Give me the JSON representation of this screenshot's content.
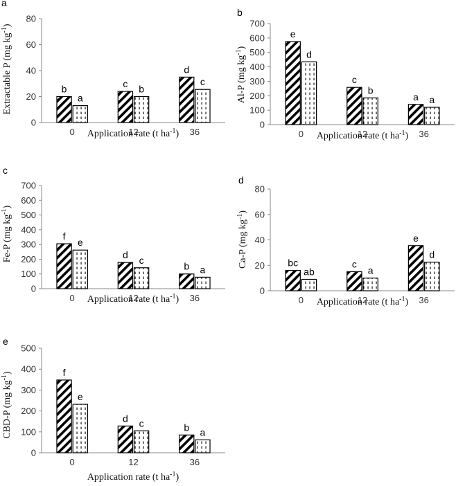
{
  "chart_data": [
    {
      "type": "bar",
      "panel": "a",
      "ylabel": "Extractable P (mg kg",
      "ylabel_sup": "-1",
      "ylabel_end": ")",
      "xlabel": "Application rate (t ha",
      "xlabel_sup": "-1",
      "xlabel_end": ")",
      "categories": [
        "0",
        "12",
        "36"
      ],
      "ylim": [
        0,
        80
      ],
      "yticks": [
        "0",
        "20",
        "40",
        "60",
        "80"
      ],
      "series": [
        {
          "pattern": "diagonal-hatch",
          "values": [
            20,
            24,
            35
          ],
          "letters": [
            "b",
            "c",
            "d"
          ]
        },
        {
          "pattern": "dashed-vertical",
          "values": [
            13,
            20,
            25.5
          ],
          "letters": [
            "a",
            "b",
            "c"
          ]
        }
      ]
    },
    {
      "type": "bar",
      "panel": "b",
      "ylabel": "Al-P (mg kg",
      "ylabel_sup": "-1",
      "ylabel_end": ")",
      "xlabel": "Application rate (t ha",
      "xlabel_sup": "-1",
      "xlabel_end": ")",
      "categories": [
        "0",
        "12",
        "36"
      ],
      "ylim": [
        0,
        700
      ],
      "yticks": [
        "0",
        "100",
        "200",
        "300",
        "400",
        "500",
        "600",
        "700"
      ],
      "series": [
        {
          "pattern": "diagonal-hatch",
          "values": [
            575,
            258,
            140
          ],
          "letters": [
            "e",
            "c",
            "a"
          ]
        },
        {
          "pattern": "dashed-vertical",
          "values": [
            435,
            185,
            120
          ],
          "letters": [
            "d",
            "b",
            "a"
          ]
        }
      ]
    },
    {
      "type": "bar",
      "panel": "c",
      "ylabel": "Fe-P (mg kg",
      "ylabel_sup": "-1",
      "ylabel_end": ")",
      "xlabel": "Application rate (t ha",
      "xlabel_sup": "-1",
      "xlabel_end": ")",
      "categories": [
        "0",
        "12",
        "36"
      ],
      "ylim": [
        0,
        700
      ],
      "yticks": [
        "0",
        "100",
        "200",
        "300",
        "400",
        "500",
        "600",
        "700"
      ],
      "series": [
        {
          "pattern": "diagonal-hatch",
          "values": [
            305,
            178,
            100
          ],
          "letters": [
            "f",
            "d",
            "b"
          ]
        },
        {
          "pattern": "dashed-vertical",
          "values": [
            262,
            142,
            78
          ],
          "letters": [
            "e",
            "c",
            "a"
          ]
        }
      ]
    },
    {
      "type": "bar",
      "panel": "d",
      "ylabel": "Ca-P (mg kg",
      "ylabel_sup": "-1",
      "ylabel_end": ")",
      "xlabel": "Application rate (t ha",
      "xlabel_sup": "-1",
      "xlabel_end": ")",
      "categories": [
        "0",
        "12",
        "36"
      ],
      "ylim": [
        0,
        80
      ],
      "yticks": [
        "0",
        "20",
        "40",
        "60",
        "80"
      ],
      "series": [
        {
          "pattern": "diagonal-hatch",
          "values": [
            16,
            15,
            35.5
          ],
          "letters": [
            "bc",
            "c",
            "e"
          ]
        },
        {
          "pattern": "dashed-vertical",
          "values": [
            9,
            10,
            22.5
          ],
          "letters": [
            "ab",
            "a",
            "d"
          ]
        }
      ]
    },
    {
      "type": "bar",
      "panel": "e",
      "ylabel": "CBD-P (mg kg",
      "ylabel_sup": "-1",
      "ylabel_end": ")",
      "xlabel": "Application rate (t ha",
      "xlabel_sup": "-1",
      "xlabel_end": ")",
      "categories": [
        "0",
        "12",
        "36"
      ],
      "ylim": [
        0,
        500
      ],
      "yticks": [
        "0",
        "100",
        "200",
        "300",
        "400",
        "500"
      ],
      "series": [
        {
          "pattern": "diagonal-hatch",
          "values": [
            348,
            128,
            85
          ],
          "letters": [
            "f",
            "d",
            "b"
          ]
        },
        {
          "pattern": "dashed-vertical",
          "values": [
            232,
            105,
            62
          ],
          "letters": [
            "e",
            "c",
            "a"
          ]
        }
      ]
    }
  ]
}
